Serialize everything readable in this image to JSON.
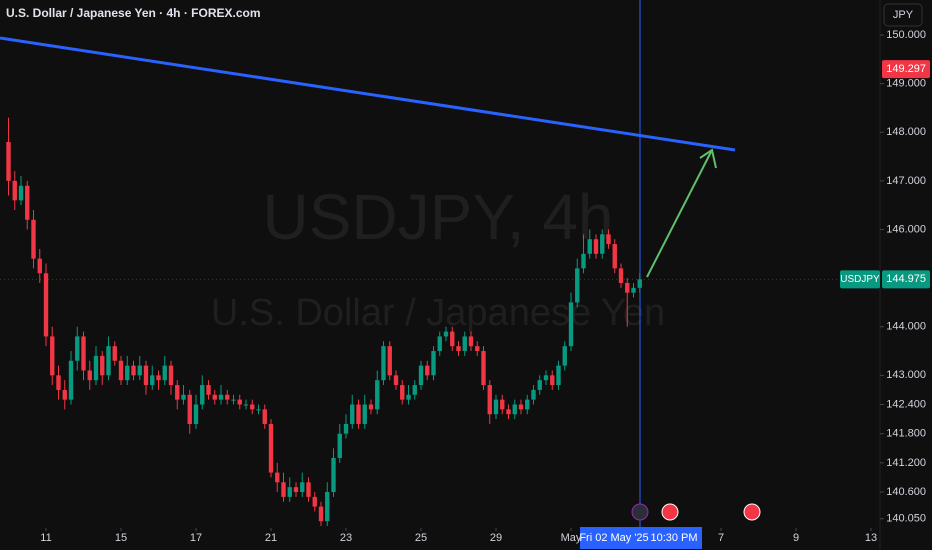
{
  "chart_data": {
    "type": "candlestick",
    "title": "U.S. Dollar / Japanese Yen · 4h · FOREX.com",
    "watermark": "USDJPY, 4h",
    "watermark_subtitle": "U.S. Dollar / Japanese Yen",
    "currency": "JPY",
    "symbol": "USDJPY",
    "last_price": 144.975,
    "alert_price": 149.297,
    "crosshair_date": "Fri 02 May '25",
    "crosshair_time": "10:30 PM",
    "up_color": "#089981",
    "down_color": "#f23645",
    "open": [
      147.8,
      147.0,
      146.6,
      146.9,
      146.2,
      145.4,
      145.1,
      143.8,
      143.0,
      142.7,
      142.5,
      143.3,
      143.8,
      143.1,
      142.9,
      143.4,
      143.0,
      143.6,
      143.3,
      142.9,
      143.2,
      143.0,
      143.2,
      142.8,
      143.0,
      142.9,
      143.2,
      142.8,
      142.5,
      142.6,
      142.0,
      142.4,
      142.8,
      142.6,
      142.5,
      142.6,
      142.5,
      142.5,
      142.4,
      142.4,
      142.3,
      142.3,
      142.0,
      141.0,
      140.8,
      140.5,
      140.7,
      140.6,
      140.8,
      140.5,
      140.3,
      140.0,
      140.6,
      141.3,
      141.8,
      142.0,
      142.4,
      142.0,
      142.4,
      142.3,
      142.9,
      143.6,
      143.0,
      142.8,
      142.5,
      142.6,
      142.8,
      143.2,
      143.0,
      143.5,
      143.8,
      143.9,
      143.6,
      143.5,
      143.8,
      143.6,
      143.5,
      142.8,
      142.2,
      142.5,
      142.3,
      142.2,
      142.4,
      142.3,
      142.5,
      142.7,
      142.9,
      143.0,
      142.8,
      143.2,
      143.6,
      144.5,
      145.2,
      145.5,
      145.8,
      145.5,
      145.9,
      145.7,
      145.2,
      144.9,
      144.7,
      144.8
    ],
    "high": [
      148.3,
      147.2,
      147.1,
      147.0,
      146.4,
      145.6,
      145.3,
      144.0,
      143.2,
      142.9,
      143.5,
      144.0,
      143.9,
      143.3,
      143.6,
      143.5,
      143.8,
      143.7,
      143.4,
      143.4,
      143.3,
      143.4,
      143.3,
      143.2,
      143.1,
      143.4,
      143.3,
      142.9,
      142.8,
      142.7,
      142.6,
      143.0,
      142.9,
      142.7,
      142.8,
      142.7,
      142.6,
      142.6,
      142.5,
      142.5,
      142.4,
      142.4,
      142.1,
      141.2,
      141.0,
      140.9,
      140.8,
      141.0,
      140.9,
      140.6,
      140.4,
      140.8,
      141.5,
      142.0,
      142.2,
      142.6,
      142.5,
      142.6,
      142.5,
      143.1,
      143.7,
      143.7,
      143.1,
      142.9,
      142.8,
      142.9,
      143.3,
      143.3,
      143.6,
      143.9,
      144.0,
      144.0,
      143.7,
      143.9,
      143.9,
      143.7,
      143.6,
      142.9,
      142.6,
      142.6,
      142.4,
      142.5,
      142.5,
      142.6,
      142.8,
      143.0,
      143.1,
      143.1,
      143.3,
      143.7,
      144.7,
      145.4,
      145.9,
      146.0,
      145.9,
      146.0,
      146.0,
      145.8,
      145.3,
      145.0,
      144.9,
      145.1
    ],
    "low": [
      146.7,
      146.4,
      146.5,
      146.0,
      145.2,
      144.9,
      143.6,
      142.8,
      142.5,
      142.3,
      142.4,
      143.1,
      142.9,
      142.7,
      142.8,
      142.8,
      142.9,
      143.2,
      142.8,
      142.8,
      142.9,
      142.9,
      142.6,
      142.7,
      142.7,
      142.8,
      142.6,
      142.3,
      142.4,
      141.8,
      141.9,
      142.3,
      142.5,
      142.4,
      142.4,
      142.4,
      142.4,
      142.3,
      142.3,
      142.2,
      142.2,
      141.9,
      140.9,
      140.6,
      140.4,
      140.4,
      140.5,
      140.5,
      140.4,
      140.2,
      139.9,
      139.9,
      140.5,
      141.2,
      141.7,
      141.9,
      141.9,
      141.9,
      142.2,
      142.2,
      142.8,
      142.9,
      142.7,
      142.4,
      142.4,
      142.5,
      142.7,
      142.9,
      142.9,
      143.4,
      143.7,
      143.5,
      143.4,
      143.4,
      143.5,
      143.4,
      142.7,
      142.0,
      142.1,
      142.2,
      142.1,
      142.1,
      142.2,
      142.2,
      142.4,
      142.6,
      142.8,
      142.7,
      142.7,
      143.1,
      143.5,
      144.4,
      145.1,
      145.4,
      145.4,
      145.4,
      145.6,
      145.1,
      144.8,
      144.0,
      144.6,
      144.7
    ],
    "close": [
      147.0,
      146.6,
      146.9,
      146.2,
      145.4,
      145.1,
      143.8,
      143.0,
      142.7,
      142.5,
      143.3,
      143.8,
      143.1,
      142.9,
      143.4,
      143.0,
      143.6,
      143.3,
      142.9,
      143.2,
      143.0,
      143.2,
      142.8,
      143.0,
      142.9,
      143.2,
      142.8,
      142.5,
      142.6,
      142.0,
      142.4,
      142.8,
      142.6,
      142.5,
      142.6,
      142.5,
      142.5,
      142.4,
      142.4,
      142.3,
      142.3,
      142.0,
      141.0,
      140.8,
      140.5,
      140.7,
      140.6,
      140.8,
      140.5,
      140.3,
      140.0,
      140.6,
      141.3,
      141.8,
      142.0,
      142.4,
      142.0,
      142.4,
      142.3,
      142.9,
      143.6,
      143.0,
      142.8,
      142.5,
      142.6,
      142.8,
      143.2,
      143.0,
      143.5,
      143.8,
      143.9,
      143.6,
      143.5,
      143.8,
      143.6,
      143.5,
      142.8,
      142.2,
      142.5,
      142.3,
      142.2,
      142.4,
      142.3,
      142.5,
      142.7,
      142.9,
      143.0,
      142.8,
      143.2,
      143.6,
      144.5,
      145.2,
      145.5,
      145.8,
      145.5,
      145.9,
      145.7,
      145.2,
      144.9,
      144.7,
      144.8,
      144.975
    ],
    "xlim": [
      -1.36,
      139.44
    ],
    "xticks": [
      {
        "value": 6,
        "label": "11"
      },
      {
        "value": 18,
        "label": "15"
      },
      {
        "value": 30,
        "label": "17"
      },
      {
        "value": 42,
        "label": "21"
      },
      {
        "value": 54,
        "label": "23"
      },
      {
        "value": 66,
        "label": "25"
      },
      {
        "value": 78,
        "label": "29"
      },
      {
        "value": 90,
        "label": "May"
      },
      {
        "value": 114,
        "label": "7"
      },
      {
        "value": 126,
        "label": "9"
      },
      {
        "value": 138,
        "label": "13"
      }
    ],
    "ylim": [
      139.86,
      150.72
    ],
    "yticks": [
      {
        "value": 150,
        "label": "150.000"
      },
      {
        "value": 149,
        "label": "149.000"
      },
      {
        "value": 148,
        "label": "148.000"
      },
      {
        "value": 147,
        "label": "147.000"
      },
      {
        "value": 146,
        "label": "146.000"
      },
      {
        "value": 144,
        "label": "144.000"
      },
      {
        "value": 143,
        "label": "143.000"
      },
      {
        "value": 142.4,
        "label": "142.400"
      },
      {
        "value": 141.8,
        "label": "141.800"
      },
      {
        "value": 141.2,
        "label": "141.200"
      },
      {
        "value": 140.6,
        "label": "140.600"
      },
      {
        "value": 140.05,
        "label": "140.050"
      }
    ]
  }
}
